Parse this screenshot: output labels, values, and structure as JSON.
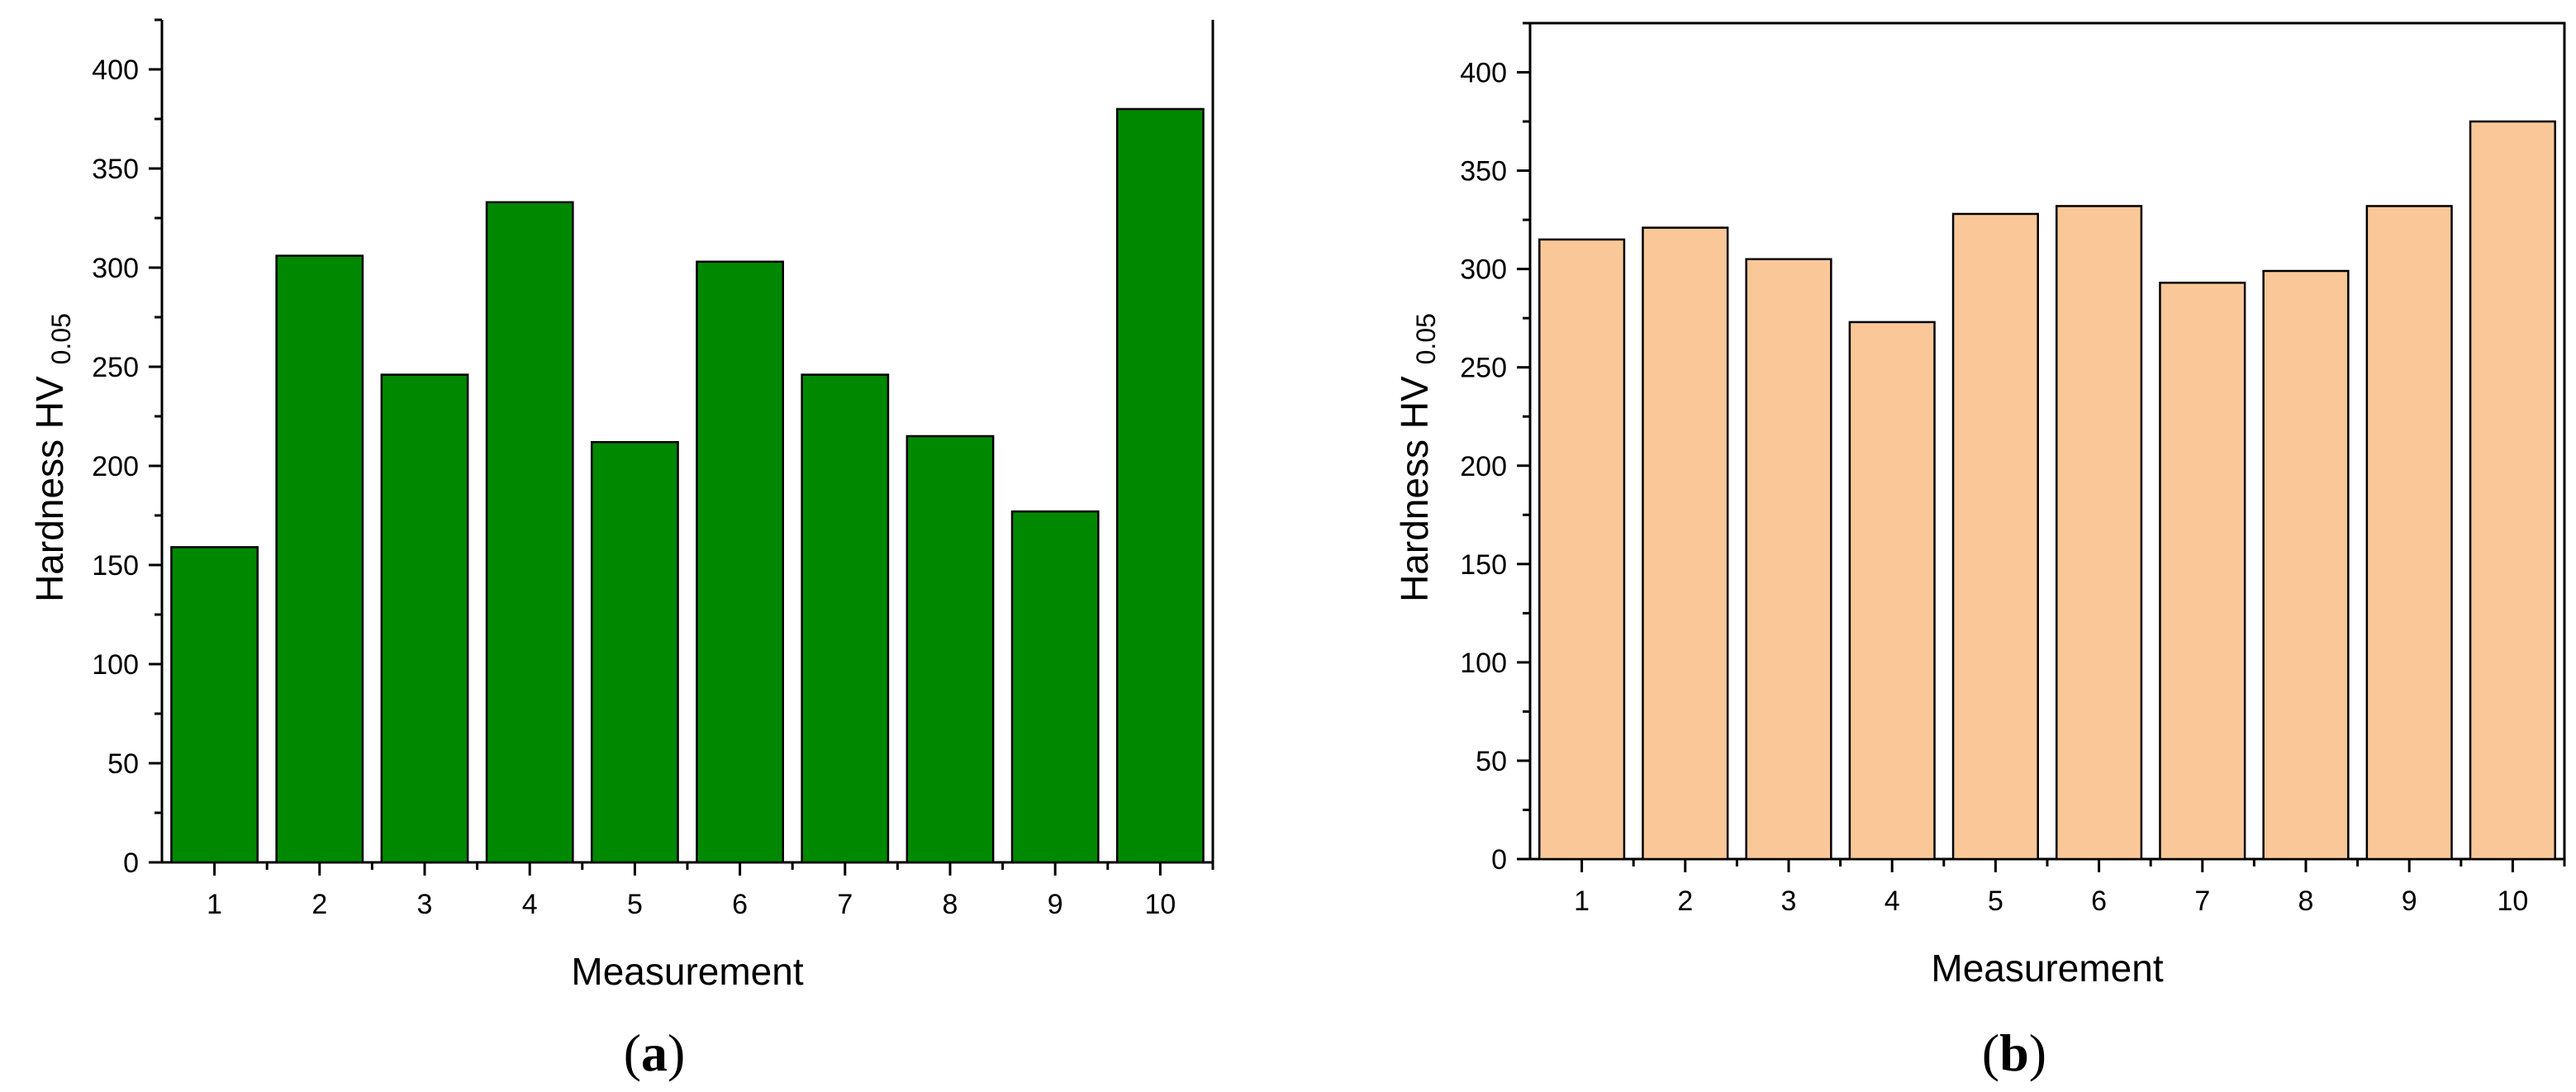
{
  "chart_data": [
    {
      "id": "a",
      "type": "bar",
      "panel_label": "a",
      "xlabel": "Measurement",
      "ylabel": "Hardness HV",
      "ylabel_subscript": "0.05",
      "categories": [
        "1",
        "2",
        "3",
        "4",
        "5",
        "6",
        "7",
        "8",
        "9",
        "10"
      ],
      "values": [
        159,
        306,
        246,
        333,
        212,
        303,
        246,
        215,
        177,
        380
      ],
      "yticks": [
        "0",
        "50",
        "100",
        "150",
        "200",
        "250",
        "300",
        "350",
        "400"
      ],
      "ylim": [
        0,
        425
      ],
      "bar_color": "#008800",
      "grid": false
    },
    {
      "id": "b",
      "type": "bar",
      "panel_label": "b",
      "xlabel": "Measurement",
      "ylabel": "Hardness HV",
      "ylabel_subscript": "0.05",
      "categories": [
        "1",
        "2",
        "3",
        "4",
        "5",
        "6",
        "7",
        "8",
        "9",
        "10"
      ],
      "values": [
        315,
        321,
        305,
        273,
        328,
        332,
        293,
        299,
        332,
        375
      ],
      "yticks": [
        "0",
        "50",
        "100",
        "150",
        "200",
        "250",
        "300",
        "350",
        "400"
      ],
      "ylim": [
        0,
        425
      ],
      "bar_color": "#fac898",
      "grid": false
    }
  ]
}
